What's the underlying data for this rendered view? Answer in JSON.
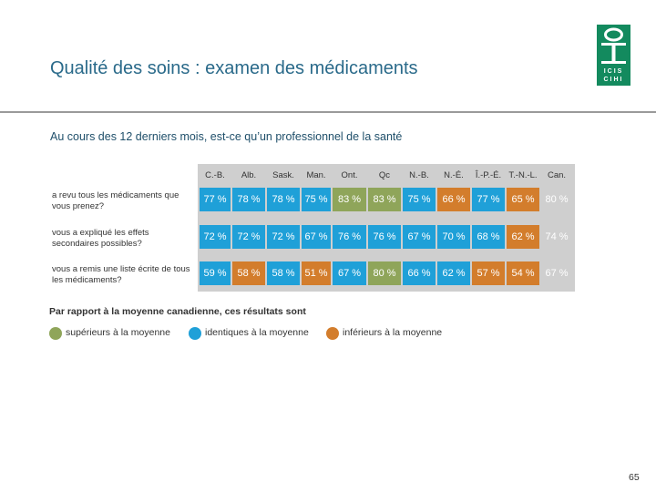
{
  "slide": {
    "title": "Qualité des soins : examen des médicaments",
    "question": "Au cours des 12 derniers mois, est-ce qu’un professionnel de la santé",
    "page_number": "65"
  },
  "logo": {
    "line1": "ICIS",
    "line2": "CIHI"
  },
  "colors": {
    "above": "#8fa55a",
    "same": "#1fa0d8",
    "below": "#d37d2c",
    "title": "#2a6a8a",
    "logo": "#138a5e"
  },
  "table": {
    "columns": [
      "C.-B.",
      "Alb.",
      "Sask.",
      "Man.",
      "Ont.",
      "Qc",
      "N.-B.",
      "N.-É.",
      "Î.-P.-É.",
      "T.-N.-L.",
      "Can."
    ],
    "rows": [
      {
        "label": "a revu tous les médicaments que vous prenez?",
        "cells": [
          {
            "v": "77 %",
            "s": "same"
          },
          {
            "v": "78 %",
            "s": "same"
          },
          {
            "v": "78 %",
            "s": "same"
          },
          {
            "v": "75 %",
            "s": "same"
          },
          {
            "v": "83 %",
            "s": "above"
          },
          {
            "v": "83 %",
            "s": "above"
          },
          {
            "v": "75 %",
            "s": "same"
          },
          {
            "v": "66 %",
            "s": "below"
          },
          {
            "v": "77 %",
            "s": "same"
          },
          {
            "v": "65 %",
            "s": "below"
          },
          {
            "v": "80 %",
            "s": "none"
          }
        ]
      },
      {
        "label": "vous a expliqué les effets secondaires possibles?",
        "cells": [
          {
            "v": "72 %",
            "s": "same"
          },
          {
            "v": "72 %",
            "s": "same"
          },
          {
            "v": "72 %",
            "s": "same"
          },
          {
            "v": "67 %",
            "s": "same"
          },
          {
            "v": "76 %",
            "s": "same"
          },
          {
            "v": "76 %",
            "s": "same"
          },
          {
            "v": "67 %",
            "s": "same"
          },
          {
            "v": "70 %",
            "s": "same"
          },
          {
            "v": "68 %",
            "s": "same"
          },
          {
            "v": "62 %",
            "s": "below"
          },
          {
            "v": "74 %",
            "s": "none"
          }
        ]
      },
      {
        "label": "vous a remis une liste écrite de tous les médicaments?",
        "cells": [
          {
            "v": "59 %",
            "s": "same"
          },
          {
            "v": "58 %",
            "s": "below"
          },
          {
            "v": "58 %",
            "s": "same"
          },
          {
            "v": "51 %",
            "s": "below"
          },
          {
            "v": "67 %",
            "s": "same"
          },
          {
            "v": "80 %",
            "s": "above"
          },
          {
            "v": "66 %",
            "s": "same"
          },
          {
            "v": "62 %",
            "s": "same"
          },
          {
            "v": "57 %",
            "s": "below"
          },
          {
            "v": "54 %",
            "s": "below"
          },
          {
            "v": "67 %",
            "s": "none"
          }
        ]
      }
    ]
  },
  "legend": {
    "title": "Par rapport à la moyenne canadienne, ces résultats sont",
    "items": [
      {
        "label": "supérieurs à la moyenne",
        "status": "above"
      },
      {
        "label": "identiques à la moyenne",
        "status": "same"
      },
      {
        "label": "inférieurs à la moyenne",
        "status": "below"
      }
    ]
  }
}
